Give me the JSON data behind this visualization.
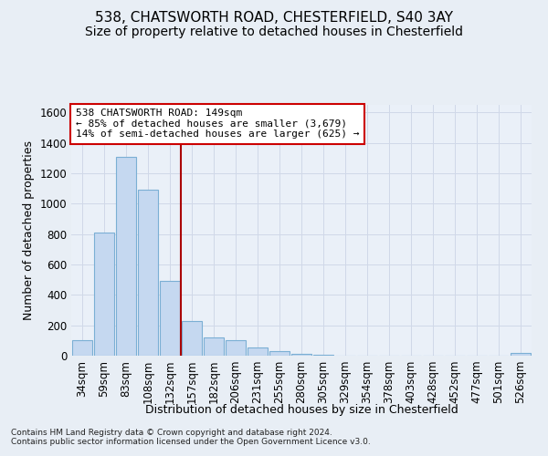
{
  "title1": "538, CHATSWORTH ROAD, CHESTERFIELD, S40 3AY",
  "title2": "Size of property relative to detached houses in Chesterfield",
  "xlabel": "Distribution of detached houses by size in Chesterfield",
  "ylabel": "Number of detached properties",
  "footnote": "Contains HM Land Registry data © Crown copyright and database right 2024.\nContains public sector information licensed under the Open Government Licence v3.0.",
  "categories": [
    "34sqm",
    "59sqm",
    "83sqm",
    "108sqm",
    "132sqm",
    "157sqm",
    "182sqm",
    "206sqm",
    "231sqm",
    "255sqm",
    "280sqm",
    "305sqm",
    "329sqm",
    "354sqm",
    "378sqm",
    "403sqm",
    "428sqm",
    "452sqm",
    "477sqm",
    "501sqm",
    "526sqm"
  ],
  "values": [
    100,
    810,
    1310,
    1090,
    490,
    230,
    120,
    100,
    55,
    30,
    10,
    5,
    2,
    0,
    0,
    0,
    0,
    0,
    0,
    0,
    20
  ],
  "bar_color": "#c5d8f0",
  "bar_edge_color": "#7bafd4",
  "vline_x": 4.5,
  "vline_color": "#aa0000",
  "annotation_text": "538 CHATSWORTH ROAD: 149sqm\n← 85% of detached houses are smaller (3,679)\n14% of semi-detached houses are larger (625) →",
  "annotation_box_color": "#ffffff",
  "annotation_box_edge": "#cc0000",
  "ylim": [
    0,
    1650
  ],
  "yticks": [
    0,
    200,
    400,
    600,
    800,
    1000,
    1200,
    1400,
    1600
  ],
  "bg_color": "#e8eef5",
  "plot_bg_color": "#eaf0f8",
  "grid_color": "#d0d8e8",
  "title_fontsize": 11,
  "subtitle_fontsize": 10,
  "axis_fontsize": 9,
  "tick_fontsize": 8.5
}
